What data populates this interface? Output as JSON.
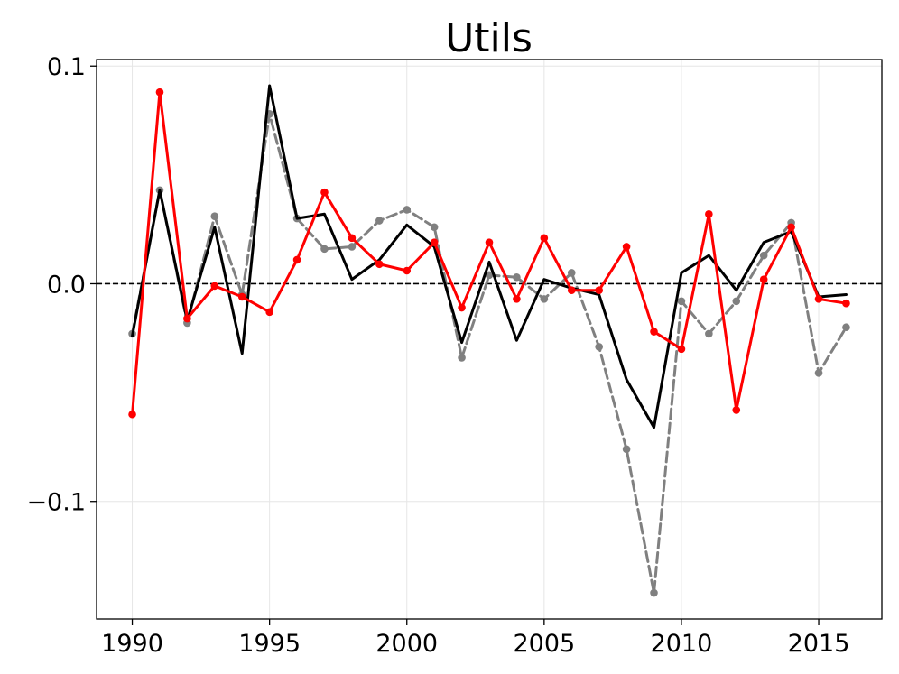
{
  "chart_data": {
    "type": "line",
    "title": "Utils",
    "xlabel": "",
    "ylabel": "",
    "x_ticks": [
      1990,
      1995,
      2000,
      2005,
      2010,
      2015
    ],
    "x_tick_labels": [
      "1990",
      "1995",
      "2000",
      "2005",
      "2010",
      "2015"
    ],
    "y_ticks": [
      -0.1,
      0.0,
      0.1
    ],
    "y_tick_labels": [
      "−0.1",
      "0.0",
      "0.1"
    ],
    "xlim": [
      1988.7,
      2017.3
    ],
    "ylim": [
      -0.154,
      0.103
    ],
    "grid": true,
    "reference_line": {
      "y": 0.0,
      "style": "dashed",
      "color": "#000000"
    },
    "x": [
      1990,
      1991,
      1992,
      1993,
      1994,
      1995,
      1996,
      1997,
      1998,
      1999,
      2000,
      2001,
      2002,
      2003,
      2004,
      2005,
      2006,
      2007,
      2008,
      2009,
      2010,
      2011,
      2012,
      2013,
      2014,
      2015,
      2016
    ],
    "series": [
      {
        "color": "#808080",
        "line_style": "dashed",
        "markers": true,
        "values": [
          -0.023,
          0.043,
          -0.018,
          0.031,
          -0.005,
          0.078,
          0.03,
          0.016,
          0.017,
          0.029,
          0.034,
          0.026,
          -0.034,
          0.004,
          0.003,
          -0.007,
          0.005,
          -0.029,
          -0.076,
          -0.142,
          -0.008,
          -0.023,
          -0.008,
          0.013,
          0.028,
          -0.041,
          -0.02
        ]
      },
      {
        "color": "#000000",
        "line_style": "solid",
        "markers": false,
        "values": [
          -0.024,
          0.043,
          -0.017,
          0.026,
          -0.032,
          0.091,
          0.03,
          0.032,
          0.002,
          0.011,
          0.027,
          0.017,
          -0.027,
          0.01,
          -0.026,
          0.002,
          -0.002,
          -0.005,
          -0.044,
          -0.066,
          0.005,
          0.013,
          -0.003,
          0.019,
          0.024,
          -0.006,
          -0.005
        ]
      },
      {
        "color": "#ff0000",
        "line_style": "solid",
        "markers": true,
        "values": [
          -0.06,
          0.088,
          -0.016,
          -0.001,
          -0.006,
          -0.013,
          0.011,
          0.042,
          0.021,
          0.009,
          0.006,
          0.019,
          -0.011,
          0.019,
          -0.007,
          0.021,
          -0.003,
          -0.003,
          0.017,
          -0.022,
          -0.03,
          0.032,
          -0.058,
          0.002,
          0.026,
          -0.007,
          -0.009
        ]
      }
    ]
  }
}
